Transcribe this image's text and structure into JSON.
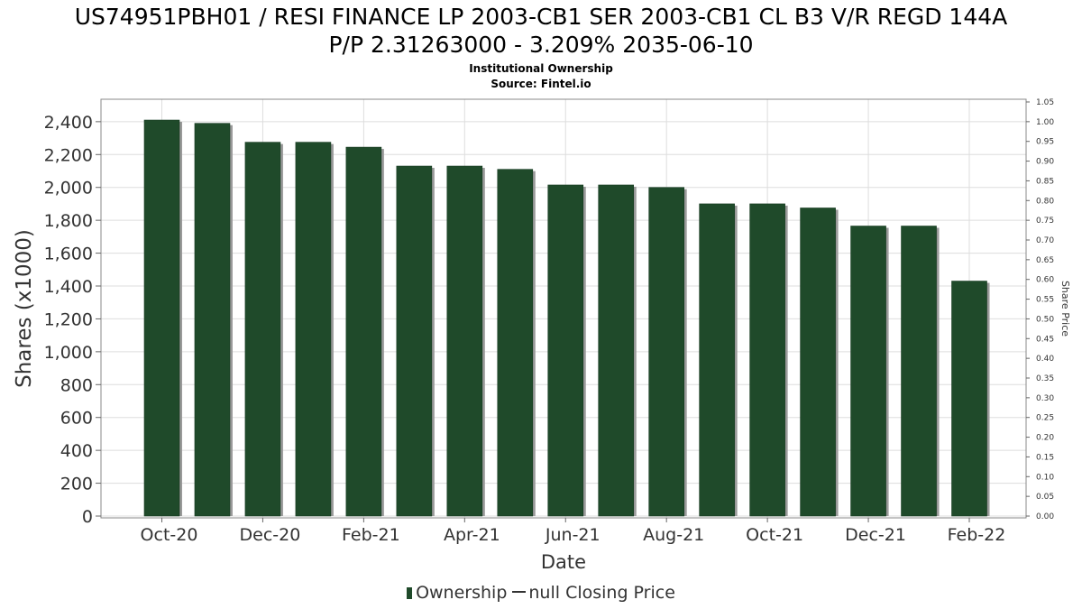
{
  "title_line1": "US74951PBH01 / RESI FINANCE LP 2003-CB1 SER 2003-CB1 CL B3 V/R REGD 144A",
  "title_line2": "P/P 2.31263000 - 3.209% 2035-06-10",
  "subtitle_line1": "Institutional Ownership",
  "subtitle_line2": "Source: Fintel.io",
  "legend": {
    "ownership_label": "Ownership",
    "price_label": "null Closing Price"
  },
  "colors": {
    "bar": "#1f4a2a",
    "bar_shadow": "#9a9a9a",
    "grid": "#dddddd",
    "plot_border": "#888888"
  },
  "chart_data": {
    "type": "bar",
    "xlabel": "Date",
    "ylabel": "Shares (x1000)",
    "y2label": "Share Price",
    "ylim": [
      0,
      2520
    ],
    "y2lim": [
      0,
      1.05
    ],
    "yticks": [
      0,
      200,
      400,
      600,
      800,
      1000,
      1200,
      1400,
      1600,
      1800,
      2000,
      2200,
      2400
    ],
    "y2ticks": [
      0.0,
      0.05,
      0.1,
      0.15,
      0.2,
      0.25,
      0.3,
      0.35,
      0.4,
      0.45,
      0.5,
      0.55,
      0.6,
      0.65,
      0.7,
      0.75,
      0.8,
      0.85,
      0.9,
      0.95,
      1.0,
      1.05
    ],
    "xtick_labels": [
      "Oct-20",
      "Dec-20",
      "Feb-21",
      "Apr-21",
      "Jun-21",
      "Aug-21",
      "Oct-21",
      "Dec-21",
      "Feb-22"
    ],
    "grid": true,
    "legend_position": "bottom",
    "series": [
      {
        "name": "Ownership",
        "values": [
          2410,
          2390,
          2275,
          2275,
          2245,
          2130,
          2130,
          2110,
          2015,
          2015,
          2000,
          1900,
          1900,
          1875,
          1765,
          1765,
          1430
        ]
      }
    ]
  }
}
